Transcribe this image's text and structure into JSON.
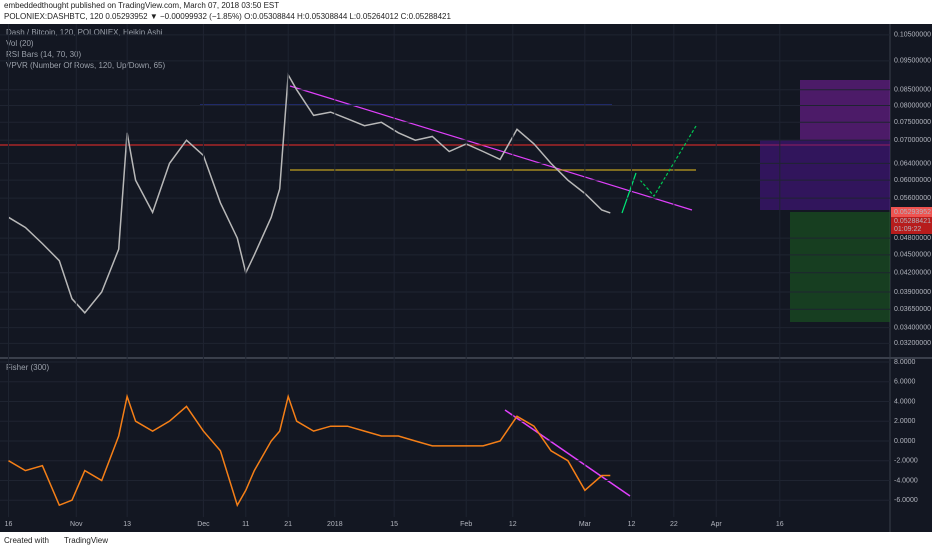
{
  "header": {
    "publisher": "embeddedthought published on TradingView.com, March 07, 2018 03:50 EST",
    "symbol_line": "POLONIEX:DASHBTC, 120 0.05293952 ▼ −0.00099932 (−1.85%) O:0.05308844 H:0.05308844 L:0.05264012 C:0.05288421",
    "indicators": [
      "Vol (20)",
      "RSI Bars (14, 70, 30)",
      "VPVR (Number Of Rows, 120, Up/Down, 65)"
    ],
    "price_labels": [
      "0.05293952",
      "0.05288421",
      "01:09:22"
    ],
    "footer": [
      "Created with",
      "TradingView"
    ]
  },
  "chart_data": [
    {
      "type": "line",
      "log_scale": true,
      "grid": true,
      "x": [
        0,
        4,
        8,
        12,
        15,
        18,
        22,
        26,
        28,
        30,
        34,
        38,
        42,
        46,
        50,
        54,
        56,
        58,
        62,
        64,
        66,
        68,
        72,
        76,
        80,
        84,
        88,
        92,
        96,
        100,
        104,
        108,
        112,
        116,
        120,
        124,
        128,
        132,
        136,
        140,
        142
      ],
      "series": [
        {
          "name": "Dash / Bitcoin, 120, POLONIEX, Heikin Ashi",
          "color": "#b8b8b8",
          "values": [
            0.052,
            0.05,
            0.047,
            0.044,
            0.038,
            0.036,
            0.039,
            0.046,
            0.072,
            0.06,
            0.053,
            0.064,
            0.07,
            0.066,
            0.055,
            0.048,
            0.042,
            0.045,
            0.052,
            0.058,
            0.09,
            0.085,
            0.077,
            0.078,
            0.076,
            0.074,
            0.075,
            0.072,
            0.07,
            0.071,
            0.067,
            0.069,
            0.067,
            0.065,
            0.073,
            0.069,
            0.064,
            0.06,
            0.057,
            0.0535,
            0.0529
          ]
        }
      ],
      "xlim": [
        -2,
        208
      ],
      "ylim": [
        0.0306,
        0.1095
      ],
      "yticks": [
        {
          "value": 0.105,
          "label": "0.10500000"
        },
        {
          "value": 0.095,
          "label": "0.09500000"
        },
        {
          "value": 0.085,
          "label": "0.08500000"
        },
        {
          "value": 0.08,
          "label": "0.08000000"
        },
        {
          "value": 0.075,
          "label": "0.07500000"
        },
        {
          "value": 0.07,
          "label": "0.07000000"
        },
        {
          "value": 0.064,
          "label": "0.06400000"
        },
        {
          "value": 0.06,
          "label": "0.06000000"
        },
        {
          "value": 0.056,
          "label": "0.05600000"
        },
        {
          "value": 0.048,
          "label": "0.04800000"
        },
        {
          "value": 0.045,
          "label": "0.04500000"
        },
        {
          "value": 0.042,
          "label": "0.04200000"
        },
        {
          "value": 0.039,
          "label": "0.03900000"
        },
        {
          "value": 0.0365,
          "label": "0.03650000"
        },
        {
          "value": 0.034,
          "label": "0.03400000"
        },
        {
          "value": 0.032,
          "label": "0.03200000"
        }
      ]
    },
    {
      "type": "line",
      "grid": true,
      "x": [
        0,
        4,
        8,
        12,
        15,
        18,
        22,
        26,
        28,
        30,
        34,
        38,
        42,
        46,
        50,
        54,
        56,
        58,
        62,
        64,
        66,
        68,
        72,
        76,
        80,
        84,
        88,
        92,
        96,
        100,
        104,
        108,
        112,
        116,
        120,
        124,
        128,
        132,
        136,
        140,
        142
      ],
      "series": [
        {
          "name": "Fisher (300)",
          "color": "#f57f17",
          "values": [
            -2,
            -3,
            -2.5,
            -6.5,
            -6,
            -3,
            -4,
            0.5,
            4.5,
            2,
            1,
            2,
            3.5,
            1,
            -1,
            -6.5,
            -5,
            -3,
            0,
            1,
            4.5,
            2,
            1,
            1.5,
            1.5,
            1,
            0.5,
            0.5,
            0,
            -0.5,
            -0.5,
            -0.5,
            -0.5,
            0,
            2.5,
            1.5,
            -1,
            -2,
            -5,
            -3.5,
            -3.5
          ]
        }
      ],
      "xlim": [
        -2,
        208
      ],
      "ylim": [
        -7.7,
        8.2
      ],
      "yticks": [
        {
          "value": 8,
          "label": "8.0000"
        },
        {
          "value": 6,
          "label": "6.0000"
        },
        {
          "value": 4,
          "label": "4.0000"
        },
        {
          "value": 2,
          "label": "2.0000"
        },
        {
          "value": 0,
          "label": "0.0000"
        },
        {
          "value": -2,
          "label": "-2.0000"
        },
        {
          "value": -4,
          "label": "-4.0000"
        },
        {
          "value": -6,
          "label": "-6.0000"
        }
      ],
      "xticks": [
        {
          "value": 0,
          "label": "16"
        },
        {
          "value": 16,
          "label": "Nov"
        },
        {
          "value": 28,
          "label": "13"
        },
        {
          "value": 46,
          "label": "Dec"
        },
        {
          "value": 56,
          "label": "11"
        },
        {
          "value": 66,
          "label": "21"
        },
        {
          "value": 77,
          "label": "2018"
        },
        {
          "value": 91,
          "label": "15"
        },
        {
          "value": 108,
          "label": "Feb"
        },
        {
          "value": 119,
          "label": "12"
        },
        {
          "value": 136,
          "label": "Mar"
        },
        {
          "value": 147,
          "label": "12"
        },
        {
          "value": 157,
          "label": "22"
        },
        {
          "value": 167,
          "label": "Apr"
        },
        {
          "value": 182,
          "label": "16"
        }
      ]
    }
  ]
}
